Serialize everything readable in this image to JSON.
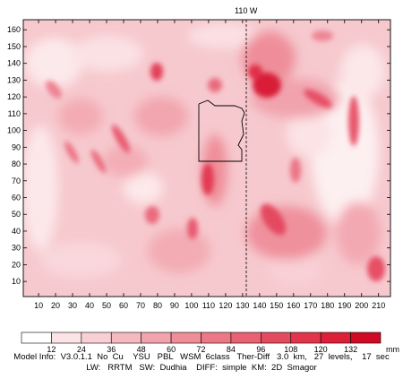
{
  "map": {
    "meridian_label": "110 W",
    "x_ticks": [
      "10",
      "20",
      "30",
      "40",
      "50",
      "60",
      "70",
      "80",
      "90",
      "100",
      "110",
      "120",
      "130",
      "140",
      "150",
      "160",
      "170",
      "180",
      "190",
      "200",
      "210"
    ],
    "y_ticks": [
      "10",
      "20",
      "30",
      "40",
      "50",
      "60",
      "70",
      "80",
      "90",
      "100",
      "110",
      "120",
      "130",
      "140",
      "150",
      "160"
    ],
    "x_range": [
      1,
      217
    ],
    "y_range": [
      1,
      166
    ],
    "meridian_x": 131
  },
  "colorbar": {
    "labels": [
      "12",
      "24",
      "36",
      "48",
      "60",
      "72",
      "84",
      "96",
      "108",
      "120",
      "132"
    ],
    "unit": "mm",
    "colors": [
      "#ffffff",
      "#fbe3e6",
      "#f8cfd4",
      "#f5b9c0",
      "#f2a3ad",
      "#ef8d99",
      "#ec7786",
      "#e96172",
      "#e54b5f",
      "#e2354b",
      "#de1f38",
      "#d00a25"
    ]
  },
  "info": {
    "line1": "Model Info:  V3.0.1.1  No  Cu    YSU   PBL   WSM  6class   Ther-Diff   3.0  km,   27  levels,    17  sec",
    "line2": "LW:   RRTM   SW:  Dudhia    DIFF:  simple  KM:  2D  Smagor"
  }
}
